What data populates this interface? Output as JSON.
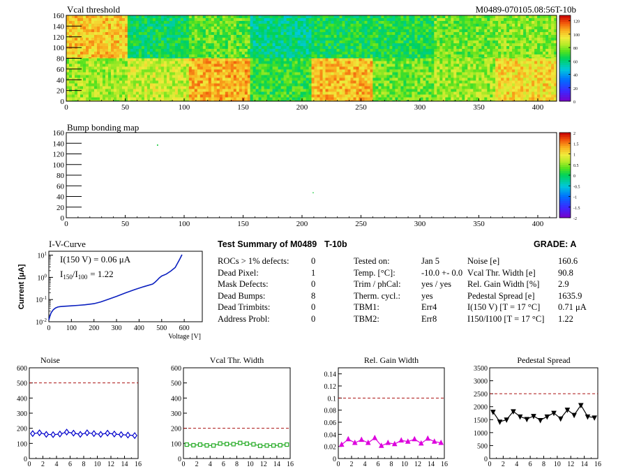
{
  "header": {
    "map_title": "Vcal threshold",
    "module_id": "M0489-070105.08:56T-10b",
    "bump_title": "Bump bonding map"
  },
  "maps": {
    "x_ticks": [
      "0",
      "50",
      "100",
      "150",
      "200",
      "250",
      "300",
      "350",
      "400"
    ],
    "y_ticks": [
      "0",
      "20",
      "40",
      "60",
      "80",
      "100",
      "120",
      "140",
      "160"
    ],
    "vcal": {
      "roc_means_top": [
        101,
        64,
        75,
        58,
        66,
        67,
        77,
        80
      ],
      "roc_means_bottom": [
        83,
        88,
        105,
        70,
        103,
        77,
        82,
        98
      ],
      "colorbar_labels": [
        "0",
        "20",
        "40",
        "60",
        "80",
        "100",
        "120"
      ],
      "zmax": 128
    },
    "bump": {
      "colorbar_labels": [
        "-2",
        "-1.5",
        "-1",
        "-0.5",
        "0",
        "0.5",
        "1",
        "1.5",
        "2"
      ],
      "dead_bumps_shown": [
        [
          77,
          137
        ],
        [
          77,
          138
        ],
        [
          209,
          48
        ]
      ]
    }
  },
  "iv": {
    "title": "I-V-Curve",
    "ylabel": "Current [μA]",
    "xlabel": "Voltage [V]",
    "x_ticks": [
      "0",
      "100",
      "200",
      "300",
      "400",
      "500",
      "600"
    ],
    "annotation1": "I(150 V) = 0.06 μA",
    "annotation2": "I",
    "annotation2_sub1": "150",
    "annotation2_mid": "/I",
    "annotation2_sub2": "100",
    "annotation2_value": "=  1.22",
    "chart_data": {
      "type": "line",
      "xlabel": "Voltage [V]",
      "ylabel": "Current [μA]",
      "yscale": "log",
      "xlim": [
        0,
        680
      ],
      "ylim": [
        0.01,
        15
      ],
      "x": [
        0,
        5,
        10,
        20,
        30,
        40,
        50,
        70,
        100,
        130,
        160,
        200,
        230,
        260,
        300,
        340,
        380,
        420,
        460,
        470,
        480,
        490,
        500,
        520,
        540,
        560,
        580,
        590
      ],
      "y": [
        0.012,
        0.018,
        0.025,
        0.035,
        0.042,
        0.046,
        0.048,
        0.05,
        0.052,
        0.055,
        0.058,
        0.065,
        0.078,
        0.1,
        0.14,
        0.2,
        0.28,
        0.38,
        0.5,
        0.6,
        0.75,
        0.95,
        1.15,
        1.4,
        1.9,
        2.8,
        6.5,
        10.5
      ]
    }
  },
  "summary": {
    "title": "Test Summary of M0489",
    "tag": "T-10b",
    "grade_label": "GRADE:  A",
    "left": [
      {
        "label": "ROCs > 1% defects:",
        "value": "0"
      },
      {
        "label": "Dead Pixel:",
        "value": "1"
      },
      {
        "label": "Mask Defects:",
        "value": "0"
      },
      {
        "label": "Dead Bumps:",
        "value": "8"
      },
      {
        "label": "Dead Trimbits:",
        "value": "0"
      },
      {
        "label": "Address Probl:",
        "value": "0"
      }
    ],
    "mid": [
      {
        "label": "Tested on:",
        "value": "Jan 5"
      },
      {
        "label": "Temp. [°C]:",
        "value": "-10.0 +- 0.0"
      },
      {
        "label": "Trim / phCal:",
        "value": "yes / yes"
      },
      {
        "label": "Therm. cycl.:",
        "value": "yes"
      },
      {
        "label": "TBM1:",
        "value": "Err4"
      },
      {
        "label": "TBM2:",
        "value": "Err8"
      }
    ],
    "right": [
      {
        "label": "Noise [e]",
        "value": "160.6"
      },
      {
        "label": "Vcal Thr. Width [e]",
        "value": "90.8"
      },
      {
        "label": "Rel. Gain Width [%]",
        "value": "2.9"
      },
      {
        "label": "Pedestal Spread [e]",
        "value": "1635.9"
      },
      {
        "label": "I(150 V) [T = 17 °C]",
        "value": "0.71 μA"
      },
      {
        "label": "I150/I100  [T = 17 °C]",
        "value": "1.22"
      }
    ]
  },
  "chart_data": [
    {
      "type": "line",
      "title": "Noise",
      "marker": "diamond",
      "color": "#0000cc",
      "x": [
        0,
        1,
        2,
        3,
        4,
        5,
        6,
        7,
        8,
        9,
        10,
        11,
        12,
        13,
        14,
        15
      ],
      "values": [
        165,
        170,
        160,
        158,
        162,
        175,
        168,
        160,
        170,
        165,
        160,
        168,
        162,
        158,
        155,
        152
      ],
      "ylim": [
        0,
        600
      ],
      "xlim": [
        0,
        16
      ],
      "limit": 500,
      "y_ticks": [
        "0",
        "100",
        "200",
        "300",
        "400",
        "500",
        "600"
      ],
      "x_ticks": [
        "0",
        "2",
        "4",
        "6",
        "8",
        "10",
        "12",
        "14",
        "16"
      ]
    },
    {
      "type": "line",
      "title": "Vcal Thr. Width",
      "marker": "square",
      "color": "#22aa22",
      "x": [
        0,
        1,
        2,
        3,
        4,
        5,
        6,
        7,
        8,
        9,
        10,
        11,
        12,
        13,
        14,
        15
      ],
      "values": [
        92,
        88,
        92,
        87,
        86,
        99,
        96,
        95,
        103,
        98,
        94,
        84,
        86,
        86,
        88,
        92
      ],
      "ylim": [
        0,
        600
      ],
      "xlim": [
        0,
        16
      ],
      "limit": 200,
      "y_ticks": [
        "0",
        "100",
        "200",
        "300",
        "400",
        "500",
        "600"
      ],
      "x_ticks": [
        "0",
        "2",
        "4",
        "6",
        "8",
        "10",
        "12",
        "14",
        "16"
      ]
    },
    {
      "type": "line",
      "title": "Rel. Gain Width",
      "marker": "triangle-up",
      "color": "#dd00dd",
      "x": [
        0,
        1,
        2,
        3,
        4,
        5,
        6,
        7,
        8,
        9,
        10,
        11,
        12,
        13,
        14,
        15
      ],
      "values": [
        0.023,
        0.032,
        0.026,
        0.031,
        0.026,
        0.034,
        0.021,
        0.026,
        0.024,
        0.03,
        0.028,
        0.032,
        0.025,
        0.033,
        0.028,
        0.026
      ],
      "ylim": [
        0,
        0.15
      ],
      "xlim": [
        0,
        16
      ],
      "limit": 0.1,
      "y_ticks": [
        "0",
        "0.02",
        "0.04",
        "0.06",
        "0.08",
        "0.1",
        "0.12",
        "0.14"
      ],
      "x_ticks": [
        "0",
        "2",
        "4",
        "6",
        "8",
        "10",
        "12",
        "14",
        "16"
      ]
    },
    {
      "type": "line",
      "title": "Pedestal Spread",
      "marker": "triangle-down",
      "color": "#000000",
      "x": [
        0,
        1,
        2,
        3,
        4,
        5,
        6,
        7,
        8,
        9,
        10,
        11,
        12,
        13,
        14,
        15
      ],
      "values": [
        1800,
        1420,
        1500,
        1820,
        1620,
        1520,
        1640,
        1480,
        1620,
        1760,
        1540,
        1880,
        1680,
        2060,
        1620,
        1580
      ],
      "ylim": [
        0,
        3500
      ],
      "xlim": [
        0,
        16
      ],
      "limit": 2500,
      "y_ticks": [
        "0",
        "500",
        "1000",
        "1500",
        "2000",
        "2500",
        "3000",
        "3500"
      ],
      "x_ticks": [
        "0",
        "2",
        "4",
        "6",
        "8",
        "10",
        "12",
        "14",
        "16"
      ]
    }
  ]
}
